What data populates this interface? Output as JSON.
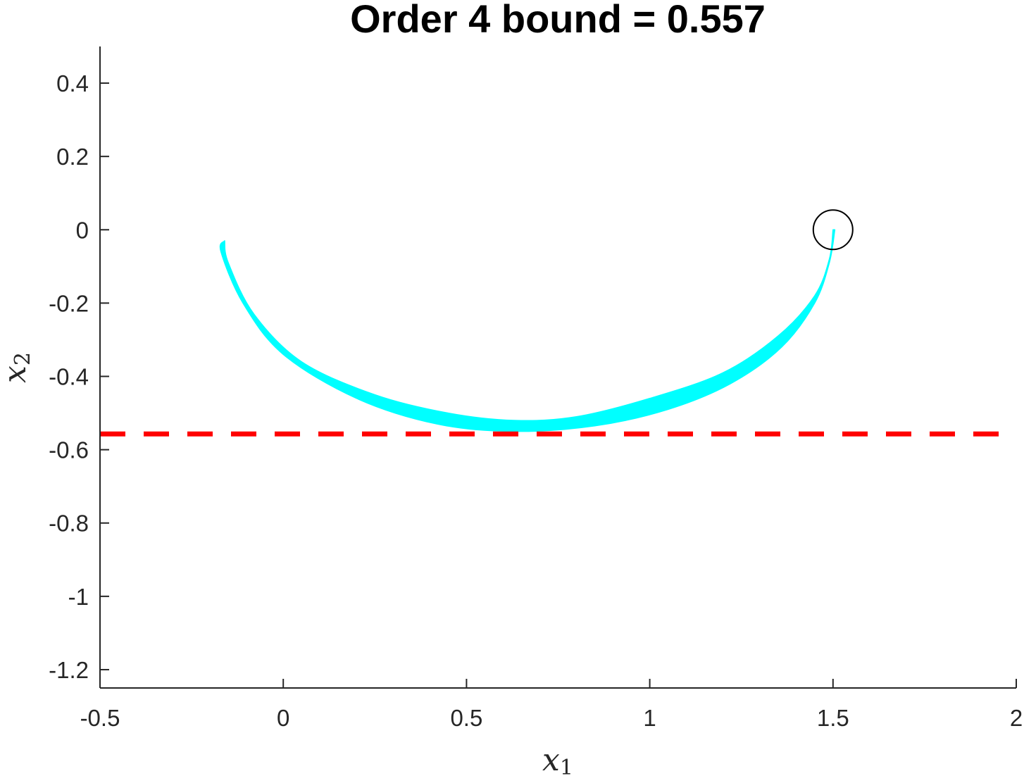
{
  "chart_data": {
    "type": "area",
    "title": "Order 4 bound = 0.557",
    "xlabel": {
      "var": "x",
      "sub": "1"
    },
    "ylabel": {
      "var": "x",
      "sub": "2"
    },
    "xlim": [
      -0.5,
      2
    ],
    "ylim": [
      -1.25,
      0.5
    ],
    "xticks": [
      -0.5,
      0,
      0.5,
      1,
      1.5,
      2
    ],
    "xtick_labels": [
      "-0.5",
      "0",
      "0.5",
      "1",
      "1.5",
      "2"
    ],
    "yticks": [
      0.4,
      0.2,
      0,
      -0.2,
      -0.4,
      -0.6,
      -0.8,
      -1,
      -1.2
    ],
    "ytick_labels": [
      "0.4",
      "0.2",
      "0",
      "-0.2",
      "-0.4",
      "-0.6",
      "-0.8",
      "-1",
      "-1.2"
    ],
    "grid": false,
    "box": false,
    "series": [
      {
        "kind": "trajectory-band",
        "color": "#00ffff",
        "upper": [
          {
            "x": 1.5,
            "y": 0.0
          },
          {
            "x": 1.49,
            "y": -0.08
          },
          {
            "x": 1.45,
            "y": -0.18
          },
          {
            "x": 1.35,
            "y": -0.29
          },
          {
            "x": 1.2,
            "y": -0.39
          },
          {
            "x": 1.0,
            "y": -0.46
          },
          {
            "x": 0.8,
            "y": -0.51
          },
          {
            "x": 0.63,
            "y": -0.52
          },
          {
            "x": 0.45,
            "y": -0.5
          },
          {
            "x": 0.25,
            "y": -0.45
          },
          {
            "x": 0.05,
            "y": -0.36
          },
          {
            "x": -0.08,
            "y": -0.23
          },
          {
            "x": -0.15,
            "y": -0.09
          },
          {
            "x": -0.16,
            "y": -0.03
          }
        ],
        "lower": [
          {
            "x": -0.16,
            "y": -0.03
          },
          {
            "x": -0.17,
            "y": -0.06
          },
          {
            "x": -0.11,
            "y": -0.2
          },
          {
            "x": 0.0,
            "y": -0.34
          },
          {
            "x": 0.2,
            "y": -0.46
          },
          {
            "x": 0.42,
            "y": -0.53
          },
          {
            "x": 0.63,
            "y": -0.55
          },
          {
            "x": 0.85,
            "y": -0.535
          },
          {
            "x": 1.05,
            "y": -0.49
          },
          {
            "x": 1.22,
            "y": -0.42
          },
          {
            "x": 1.36,
            "y": -0.32
          },
          {
            "x": 1.45,
            "y": -0.2
          },
          {
            "x": 1.49,
            "y": -0.09
          },
          {
            "x": 1.505,
            "y": 0.0
          }
        ]
      },
      {
        "kind": "hline",
        "y": -0.557,
        "color": "#ff0000",
        "style": "dashed"
      },
      {
        "kind": "marker",
        "shape": "circle",
        "x": 1.5,
        "y": 0.0,
        "color": "#000000"
      }
    ]
  }
}
